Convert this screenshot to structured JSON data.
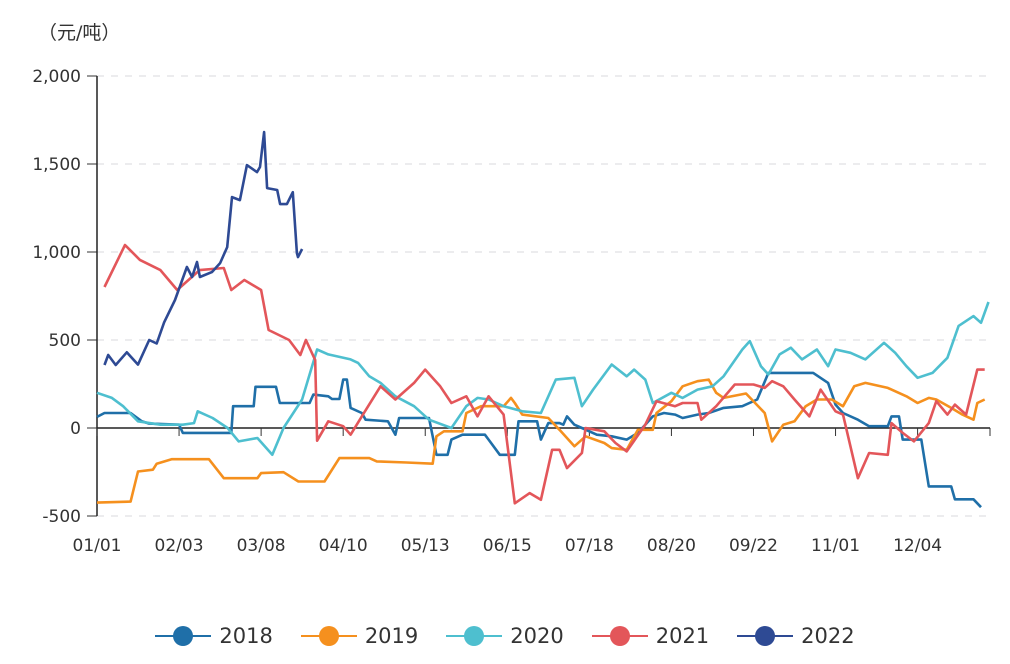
{
  "chart_data": {
    "type": "line",
    "title": "",
    "unit_label": "（元/吨）",
    "xlabel": "",
    "ylabel": "",
    "x_ticks": [
      "01/01",
      "02/03",
      "03/08",
      "04/10",
      "05/13",
      "06/15",
      "07/18",
      "08/20",
      "09/22",
      "11/01",
      "12/04"
    ],
    "y_ticks": [
      "2,000",
      "1,500",
      "1,000",
      "500",
      "0",
      "-500"
    ],
    "ylim": [
      -500,
      2000
    ],
    "grid": "horizontal dashed",
    "legend_position": "bottom",
    "series": [
      {
        "name": "2018",
        "color": "#1f6fa8",
        "points": [
          [
            0,
            63
          ],
          [
            2,
            85
          ],
          [
            9,
            85
          ],
          [
            12,
            38
          ],
          [
            14,
            25
          ],
          [
            22,
            19
          ],
          [
            23,
            -28
          ],
          [
            36,
            -28
          ],
          [
            36.5,
            124
          ],
          [
            42,
            124
          ],
          [
            42.5,
            234
          ],
          [
            48,
            234
          ],
          [
            49,
            142
          ],
          [
            57,
            142
          ],
          [
            58,
            190
          ],
          [
            62,
            180
          ],
          [
            63,
            165
          ],
          [
            65,
            165
          ],
          [
            66,
            275
          ],
          [
            67,
            275
          ],
          [
            68,
            114
          ],
          [
            71,
            85
          ],
          [
            72,
            47
          ],
          [
            78,
            38
          ],
          [
            80,
            -38
          ],
          [
            81,
            57
          ],
          [
            89,
            57
          ],
          [
            91,
            -152
          ],
          [
            94,
            -152
          ],
          [
            95,
            -66
          ],
          [
            98,
            -38
          ],
          [
            104,
            -38
          ],
          [
            105,
            -66
          ],
          [
            108,
            -152
          ],
          [
            112,
            -152
          ],
          [
            113,
            38
          ],
          [
            118,
            38
          ],
          [
            119,
            -66
          ],
          [
            120,
            -19
          ],
          [
            121,
            28
          ],
          [
            124,
            28
          ],
          [
            125,
            19
          ],
          [
            126,
            66
          ],
          [
            128,
            19
          ],
          [
            130,
            0
          ],
          [
            134,
            -38
          ],
          [
            138,
            -47
          ],
          [
            142,
            -66
          ],
          [
            145,
            -28
          ],
          [
            149,
            66
          ],
          [
            152,
            85
          ],
          [
            155,
            76
          ],
          [
            157,
            57
          ],
          [
            161,
            76
          ],
          [
            164,
            85
          ],
          [
            168,
            114
          ],
          [
            173,
            124
          ],
          [
            177,
            162
          ],
          [
            180,
            313
          ],
          [
            192,
            313
          ],
          [
            196,
            256
          ],
          [
            198,
            133
          ],
          [
            200,
            85
          ],
          [
            204,
            47
          ],
          [
            207,
            10
          ],
          [
            212,
            10
          ],
          [
            213,
            66
          ],
          [
            215,
            66
          ],
          [
            216,
            -66
          ],
          [
            221,
            -66
          ],
          [
            223,
            -332
          ],
          [
            229,
            -332
          ],
          [
            230,
            -405
          ],
          [
            235,
            -405
          ],
          [
            237,
            -450
          ]
        ]
      },
      {
        "name": "2019",
        "color": "#f5901e",
        "points": [
          [
            0,
            -424
          ],
          [
            9,
            -418
          ],
          [
            11,
            -247
          ],
          [
            15,
            -237
          ],
          [
            16,
            -203
          ],
          [
            20,
            -177
          ],
          [
            30,
            -177
          ],
          [
            34,
            -285
          ],
          [
            43,
            -285
          ],
          [
            44,
            -256
          ],
          [
            50,
            -251
          ],
          [
            54,
            -304
          ],
          [
            61,
            -304
          ],
          [
            65,
            -171
          ],
          [
            73,
            -171
          ],
          [
            75,
            -190
          ],
          [
            83,
            -196
          ],
          [
            90,
            -203
          ],
          [
            91,
            -47
          ],
          [
            93,
            -19
          ],
          [
            98,
            -19
          ],
          [
            99,
            85
          ],
          [
            103,
            124
          ],
          [
            109,
            124
          ],
          [
            111,
            171
          ],
          [
            112,
            142
          ],
          [
            114,
            76
          ],
          [
            121,
            57
          ],
          [
            124,
            -10
          ],
          [
            128,
            -104
          ],
          [
            131,
            -47
          ],
          [
            136,
            -85
          ],
          [
            138,
            -114
          ],
          [
            142,
            -124
          ],
          [
            145,
            -10
          ],
          [
            149,
            -10
          ],
          [
            150,
            85
          ],
          [
            154,
            152
          ],
          [
            157,
            237
          ],
          [
            161,
            266
          ],
          [
            164,
            275
          ],
          [
            166,
            200
          ],
          [
            168,
            171
          ],
          [
            174,
            196
          ],
          [
            179,
            85
          ],
          [
            181,
            -76
          ],
          [
            184,
            19
          ],
          [
            187,
            38
          ],
          [
            190,
            124
          ],
          [
            193,
            162
          ],
          [
            197,
            162
          ],
          [
            200,
            124
          ],
          [
            203,
            237
          ],
          [
            206,
            256
          ],
          [
            212,
            228
          ],
          [
            217,
            180
          ],
          [
            220,
            142
          ],
          [
            223,
            171
          ],
          [
            225,
            162
          ],
          [
            229,
            114
          ],
          [
            232,
            76
          ],
          [
            235,
            47
          ],
          [
            236,
            142
          ],
          [
            238,
            162
          ]
        ]
      },
      {
        "name": "2020",
        "color": "#4ebfcf",
        "points": [
          [
            0,
            200
          ],
          [
            4,
            171
          ],
          [
            7,
            124
          ],
          [
            11,
            38
          ],
          [
            17,
            19
          ],
          [
            23,
            19
          ],
          [
            26,
            28
          ],
          [
            27,
            95
          ],
          [
            31,
            57
          ],
          [
            35,
            0
          ],
          [
            38,
            -76
          ],
          [
            43,
            -57
          ],
          [
            47,
            -152
          ],
          [
            50,
            0
          ],
          [
            55,
            162
          ],
          [
            59,
            446
          ],
          [
            62,
            418
          ],
          [
            68,
            390
          ],
          [
            70,
            370
          ],
          [
            73,
            294
          ],
          [
            76,
            256
          ],
          [
            80,
            180
          ],
          [
            85,
            124
          ],
          [
            89,
            47
          ],
          [
            95,
            0
          ],
          [
            99,
            124
          ],
          [
            102,
            171
          ],
          [
            105,
            162
          ],
          [
            109,
            124
          ],
          [
            114,
            95
          ],
          [
            119,
            85
          ],
          [
            123,
            275
          ],
          [
            128,
            285
          ],
          [
            130,
            124
          ],
          [
            133,
            218
          ],
          [
            138,
            361
          ],
          [
            142,
            294
          ],
          [
            144,
            332
          ],
          [
            147,
            275
          ],
          [
            149,
            142
          ],
          [
            154,
            200
          ],
          [
            157,
            171
          ],
          [
            161,
            218
          ],
          [
            165,
            237
          ],
          [
            168,
            294
          ],
          [
            173,
            446
          ],
          [
            175,
            494
          ],
          [
            178,
            351
          ],
          [
            180,
            304
          ],
          [
            183,
            418
          ],
          [
            186,
            456
          ],
          [
            189,
            390
          ],
          [
            193,
            446
          ],
          [
            196,
            351
          ],
          [
            198,
            446
          ],
          [
            202,
            427
          ],
          [
            206,
            390
          ],
          [
            211,
            484
          ],
          [
            214,
            427
          ],
          [
            217,
            351
          ],
          [
            220,
            285
          ],
          [
            224,
            313
          ],
          [
            228,
            399
          ],
          [
            231,
            580
          ],
          [
            235,
            636
          ],
          [
            237,
            598
          ],
          [
            239,
            716
          ]
        ]
      },
      {
        "name": "2021",
        "color": "#e3565a",
        "points": [
          [
            2,
            801
          ],
          [
            7.5,
            1040
          ],
          [
            11.5,
            955
          ],
          [
            17,
            897
          ],
          [
            21.5,
            784
          ],
          [
            27.5,
            897
          ],
          [
            34,
            909
          ],
          [
            36,
            784
          ],
          [
            39.5,
            841
          ],
          [
            44,
            784
          ],
          [
            46,
            557
          ],
          [
            51.5,
            500
          ],
          [
            54.5,
            415
          ],
          [
            56,
            500
          ],
          [
            58.5,
            386
          ],
          [
            59,
            -72
          ],
          [
            62,
            38
          ],
          [
            66,
            10
          ],
          [
            68,
            -38
          ],
          [
            71,
            66
          ],
          [
            76,
            237
          ],
          [
            80,
            162
          ],
          [
            85,
            256
          ],
          [
            88,
            332
          ],
          [
            92,
            237
          ],
          [
            95,
            142
          ],
          [
            99,
            180
          ],
          [
            102,
            66
          ],
          [
            105,
            180
          ],
          [
            109,
            76
          ],
          [
            112,
            -428
          ],
          [
            116,
            -370
          ],
          [
            119,
            -408
          ],
          [
            122,
            -124
          ],
          [
            124,
            -124
          ],
          [
            126,
            -228
          ],
          [
            130,
            -142
          ],
          [
            131,
            0
          ],
          [
            136,
            -19
          ],
          [
            139,
            -85
          ],
          [
            142,
            -133
          ],
          [
            147,
            19
          ],
          [
            150,
            152
          ],
          [
            155,
            124
          ],
          [
            157,
            142
          ],
          [
            161,
            142
          ],
          [
            162,
            47
          ],
          [
            166,
            124
          ],
          [
            171,
            247
          ],
          [
            176,
            247
          ],
          [
            179,
            228
          ],
          [
            181,
            266
          ],
          [
            184,
            237
          ],
          [
            187,
            162
          ],
          [
            191,
            66
          ],
          [
            194,
            218
          ],
          [
            198,
            95
          ],
          [
            200,
            76
          ],
          [
            204,
            -285
          ],
          [
            207,
            -142
          ],
          [
            212,
            -152
          ],
          [
            213,
            28
          ],
          [
            216,
            -28
          ],
          [
            219,
            -76
          ],
          [
            223,
            28
          ],
          [
            225,
            152
          ],
          [
            228,
            76
          ],
          [
            230,
            133
          ],
          [
            233,
            76
          ],
          [
            236,
            332
          ],
          [
            238,
            332
          ]
        ]
      },
      {
        "name": "2022",
        "color": "#2e4a94",
        "points": [
          [
            2,
            358
          ],
          [
            3,
            415
          ],
          [
            5,
            358
          ],
          [
            8,
            430
          ],
          [
            11,
            360
          ],
          [
            14,
            500
          ],
          [
            16,
            480
          ],
          [
            18,
            600
          ],
          [
            20.9,
            727
          ],
          [
            24.1,
            915
          ],
          [
            25.5,
            858
          ],
          [
            26.8,
            943
          ],
          [
            27.6,
            858
          ],
          [
            30.8,
            886
          ],
          [
            33,
            937
          ],
          [
            34.9,
            1028
          ],
          [
            36.2,
            1312
          ],
          [
            38.3,
            1295
          ],
          [
            40.2,
            1494
          ],
          [
            42.9,
            1454
          ],
          [
            43.7,
            1483
          ],
          [
            44.8,
            1681
          ],
          [
            45.6,
            1363
          ],
          [
            48.3,
            1352
          ],
          [
            49.1,
            1272
          ],
          [
            50.9,
            1272
          ],
          [
            52.5,
            1340
          ],
          [
            53.6,
            994
          ],
          [
            53.9,
            971
          ],
          [
            55,
            1017
          ]
        ]
      }
    ]
  }
}
